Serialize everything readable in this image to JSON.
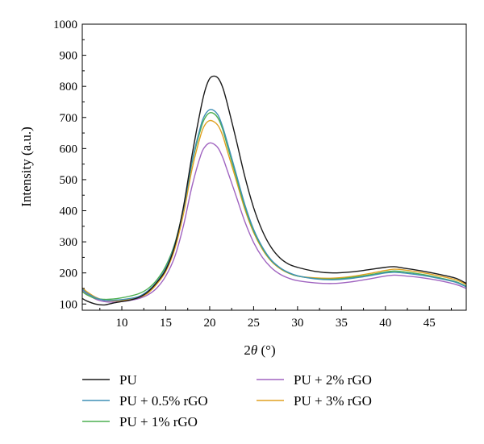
{
  "chart_data": {
    "type": "line",
    "title": "",
    "xlabel": "2θ (°)",
    "xlabel_parts": {
      "prefix": "2",
      "symbol": "θ",
      "suffix": " (°)"
    },
    "ylabel": "Intensity (a.u.)",
    "xlim": [
      5.5,
      49.2
    ],
    "ylim": [
      80,
      1000
    ],
    "xticks": [
      10,
      15,
      20,
      25,
      30,
      35,
      40,
      45
    ],
    "yticks": [
      100,
      200,
      300,
      400,
      500,
      600,
      700,
      800,
      900,
      1000
    ],
    "grid": false,
    "legend_position": "bottom",
    "x": [
      5.5,
      6,
      7,
      8,
      9,
      10,
      11,
      12,
      13,
      14,
      15,
      16,
      17,
      18,
      19,
      19.5,
      20,
      20.5,
      21,
      21.5,
      22,
      23,
      24,
      25,
      26,
      27,
      28,
      29,
      30,
      32,
      34,
      36,
      38,
      40,
      41,
      42,
      44,
      46,
      48,
      49.2
    ],
    "series": [
      {
        "name": "PU",
        "color": "#1a1a1a",
        "values": [
          118,
          110,
          100,
          97,
          103,
          108,
          113,
          122,
          140,
          170,
          210,
          285,
          410,
          580,
          730,
          790,
          825,
          833,
          825,
          795,
          745,
          630,
          510,
          410,
          335,
          282,
          248,
          228,
          218,
          205,
          200,
          203,
          210,
          218,
          220,
          216,
          207,
          196,
          183,
          166
        ]
      },
      {
        "name": "PU + 0.5% rGO",
        "color": "#3f8fb5",
        "values": [
          148,
          136,
          120,
          112,
          112,
          114,
          118,
          125,
          143,
          172,
          215,
          288,
          405,
          560,
          675,
          710,
          725,
          722,
          705,
          668,
          620,
          520,
          420,
          340,
          283,
          242,
          217,
          201,
          191,
          181,
          178,
          182,
          190,
          200,
          202,
          200,
          193,
          183,
          170,
          155
        ]
      },
      {
        "name": "PU + 1% rGO",
        "color": "#4caf50",
        "values": [
          140,
          130,
          118,
          115,
          116,
          120,
          126,
          134,
          150,
          178,
          222,
          292,
          405,
          555,
          665,
          700,
          715,
          712,
          695,
          660,
          610,
          512,
          413,
          335,
          280,
          240,
          216,
          200,
          190,
          182,
          180,
          185,
          193,
          203,
          206,
          204,
          196,
          185,
          172,
          157
        ]
      },
      {
        "name": "PU + 2% rGO",
        "color": "#a064c0",
        "values": [
          145,
          133,
          116,
          108,
          106,
          108,
          112,
          118,
          130,
          152,
          190,
          250,
          350,
          480,
          580,
          607,
          618,
          614,
          600,
          570,
          530,
          448,
          365,
          298,
          250,
          217,
          196,
          183,
          175,
          168,
          166,
          171,
          180,
          190,
          193,
          191,
          185,
          176,
          163,
          150
        ]
      },
      {
        "name": "PU + 3% rGO",
        "color": "#e0a020",
        "values": [
          152,
          140,
          122,
          112,
          110,
          111,
          115,
          121,
          136,
          165,
          205,
          275,
          388,
          535,
          645,
          678,
          690,
          686,
          672,
          640,
          593,
          500,
          405,
          330,
          276,
          238,
          214,
          199,
          190,
          184,
          183,
          188,
          197,
          208,
          212,
          210,
          202,
          191,
          178,
          163
        ]
      }
    ]
  }
}
